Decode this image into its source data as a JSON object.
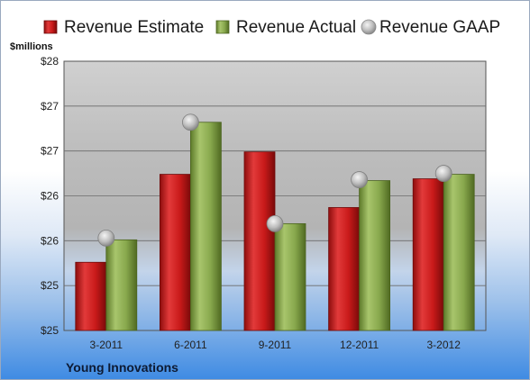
{
  "chart_data": {
    "type": "bar",
    "ylabel": "$millions",
    "footer": "Young Innovations",
    "categories": [
      "3-2011",
      "6-2011",
      "9-2011",
      "12-2011",
      "3-2012"
    ],
    "series": [
      {
        "name": "Revenue Estimate",
        "kind": "bar",
        "color": "#cc1f1f",
        "values": [
          25.76,
          26.74,
          26.99,
          26.37,
          26.69
        ]
      },
      {
        "name": "Revenue Actual",
        "kind": "bar",
        "color": "#8aab4f",
        "values": [
          26.01,
          27.32,
          26.19,
          26.67,
          26.74
        ]
      },
      {
        "name": "Revenue GAAP",
        "kind": "scatter",
        "color": "#b8b8b8",
        "values": [
          26.03,
          27.32,
          26.19,
          26.68,
          26.75
        ]
      }
    ],
    "ylim": [
      25,
      28
    ],
    "yticks": [
      {
        "value": 25.0,
        "label": "$25"
      },
      {
        "value": 25.5,
        "label": "$25"
      },
      {
        "value": 26.0,
        "label": "$26"
      },
      {
        "value": 26.5,
        "label": "$26"
      },
      {
        "value": 27.0,
        "label": "$27"
      },
      {
        "value": 27.5,
        "label": "$27"
      },
      {
        "value": 28.0,
        "label": "$28"
      }
    ],
    "grid": true,
    "legend_position": "top"
  }
}
